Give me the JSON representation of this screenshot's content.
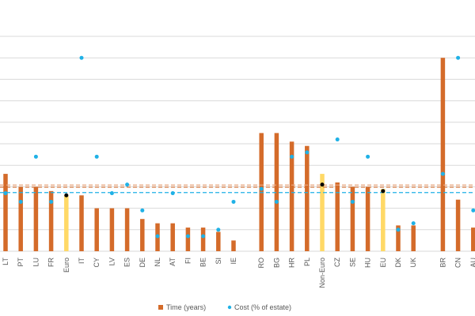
{
  "chart_data": {
    "type": "bar",
    "title": "",
    "xlabel": "",
    "ylabel": "",
    "ylim": [
      0,
      10
    ],
    "grid": true,
    "legend_position": "bottom",
    "groups": [
      {
        "name": "euro",
        "categories": [
          "LT",
          "PT",
          "LU",
          "FR",
          "Euro",
          "IT",
          "CY",
          "LV",
          "ES",
          "DE",
          "NL",
          "AT",
          "FI",
          "BE",
          "SI",
          "IE"
        ],
        "highlight": [
          "Euro"
        ]
      },
      {
        "name": "non-euro",
        "categories": [
          "RO",
          "BG",
          "HR",
          "PL",
          "Non-Euro",
          "CZ",
          "SE",
          "HU",
          "EU",
          "DK",
          "UK"
        ],
        "highlight": [
          "Non-Euro",
          "EU"
        ]
      },
      {
        "name": "international",
        "categories": [
          "BR",
          "CN",
          "AU"
        ],
        "highlight": []
      }
    ],
    "categories": [
      "LT",
      "PT",
      "LU",
      "FR",
      "Euro",
      "IT",
      "CY",
      "LV",
      "ES",
      "DE",
      "NL",
      "AT",
      "FI",
      "BE",
      "SI",
      "IE",
      "RO",
      "BG",
      "HR",
      "PL",
      "Non-Euro",
      "CZ",
      "SE",
      "HU",
      "EU",
      "DK",
      "UK",
      "BR",
      "CN",
      "AU"
    ],
    "series": [
      {
        "name": "Time (years)",
        "kind": "bar",
        "color": "#d46b2a",
        "highlight_color": "#ffd966",
        "values": [
          3.6,
          3.0,
          3.0,
          2.8,
          2.6,
          2.6,
          2.0,
          2.0,
          2.0,
          1.5,
          1.3,
          1.3,
          1.1,
          1.1,
          0.9,
          0.5,
          5.5,
          5.5,
          5.1,
          4.9,
          3.6,
          3.2,
          3.0,
          3.0,
          2.9,
          1.2,
          1.2,
          9.0,
          2.4,
          1.1
        ]
      },
      {
        "name": "Cost (% of estate)",
        "kind": "point",
        "color": "#1fb1e6",
        "highlight_color": "#000000",
        "values": [
          2.7,
          2.3,
          4.4,
          2.3,
          2.6,
          9.0,
          4.4,
          2.7,
          3.1,
          1.9,
          0.7,
          2.7,
          0.7,
          0.7,
          1.0,
          2.3,
          2.9,
          2.3,
          4.4,
          4.6,
          3.1,
          5.2,
          2.3,
          4.4,
          2.8,
          1.0,
          1.3,
          3.6,
          9.0,
          1.9
        ]
      }
    ],
    "reference_lines": [
      {
        "name": "time-average-1",
        "value": 3.08,
        "color": "#e8a37a",
        "style": "dashed"
      },
      {
        "name": "time-average-2",
        "value": 2.98,
        "color": "#d46b2a",
        "style": "dashed"
      },
      {
        "name": "cost-average",
        "value": 2.73,
        "color": "#1fb1e6",
        "style": "dashed"
      }
    ],
    "legend": [
      {
        "label": "Time (years)",
        "marker": "square",
        "color": "#d46b2a"
      },
      {
        "label": "Cost (% of estate)",
        "marker": "dot",
        "color": "#1fb1e6"
      }
    ]
  }
}
